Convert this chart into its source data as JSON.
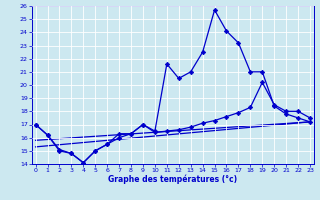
{
  "xlabel": "Graphe des températures (°c)",
  "xlim": [
    0,
    23
  ],
  "ylim": [
    14,
    26
  ],
  "yticks": [
    14,
    15,
    16,
    17,
    18,
    19,
    20,
    21,
    22,
    23,
    24,
    25,
    26
  ],
  "xticks": [
    0,
    1,
    2,
    3,
    4,
    5,
    6,
    7,
    8,
    9,
    10,
    11,
    12,
    13,
    14,
    15,
    16,
    17,
    18,
    19,
    20,
    21,
    22,
    23
  ],
  "bg_color": "#cce8f0",
  "line_color": "#0000cc",
  "curve1_x": [
    0,
    1,
    2,
    3,
    4,
    5,
    6,
    7,
    8,
    9,
    10,
    11,
    12,
    13,
    14,
    15,
    16,
    17,
    18,
    19,
    20,
    21,
    22,
    23
  ],
  "curve1_y": [
    17.0,
    16.2,
    15.1,
    14.8,
    14.1,
    15.0,
    15.5,
    16.0,
    16.3,
    17.0,
    16.5,
    21.6,
    20.5,
    21.0,
    22.5,
    25.7,
    24.1,
    23.2,
    21.0,
    21.0,
    18.4,
    17.8,
    17.5,
    17.2
  ],
  "curve2_x": [
    0,
    1,
    2,
    3,
    4,
    5,
    6,
    7,
    8,
    9,
    10,
    11,
    12,
    13,
    14,
    15,
    16,
    17,
    18,
    19,
    20,
    21,
    22,
    23
  ],
  "curve2_y": [
    17.0,
    16.2,
    15.0,
    14.8,
    14.1,
    15.0,
    15.5,
    16.3,
    16.3,
    17.0,
    16.4,
    16.5,
    16.6,
    16.8,
    17.1,
    17.3,
    17.6,
    17.9,
    18.3,
    20.2,
    18.5,
    18.0,
    18.0,
    17.5
  ],
  "line3_x": [
    0,
    23
  ],
  "line3_y": [
    15.3,
    17.2
  ],
  "line4_x": [
    0,
    23
  ],
  "line4_y": [
    15.8,
    17.2
  ]
}
